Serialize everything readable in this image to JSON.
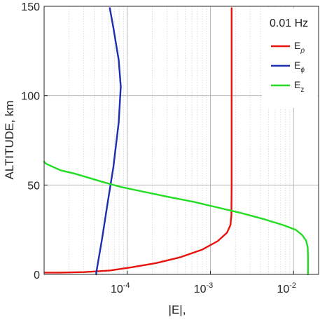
{
  "chart_data": {
    "type": "line",
    "annotation": "0.01 Hz",
    "xlabel": "|E|,",
    "ylabel": "ALTITUDE,  km",
    "x_scale": "log",
    "xlim": [
      1e-05,
      0.02
    ],
    "ylim": [
      0,
      150
    ],
    "x_ticks": [
      {
        "value": 0.0001,
        "base": "10",
        "exp": "-4"
      },
      {
        "value": 0.001,
        "base": "10",
        "exp": "-3"
      },
      {
        "value": 0.01,
        "base": "10",
        "exp": "-2"
      }
    ],
    "y_ticks": [
      0,
      50,
      100,
      150
    ],
    "grid": true,
    "legend_position": "top-right",
    "series": [
      {
        "name": "E",
        "sub": "ρ",
        "color": "#e8120c",
        "points": [
          [
            1.02e-05,
            1
          ],
          [
            1.53e-05,
            1
          ],
          [
            3.05e-05,
            1.3
          ],
          [
            6.17e-05,
            2.2
          ],
          [
            0.000113,
            4
          ],
          [
            0.000221,
            6.3
          ],
          [
            0.000428,
            9.5
          ],
          [
            0.000791,
            13.8
          ],
          [
            0.00122,
            18.6
          ],
          [
            0.00158,
            23.3
          ],
          [
            0.00174,
            27.6
          ],
          [
            0.00179,
            33.2
          ],
          [
            0.0018,
            50
          ],
          [
            0.0018,
            100
          ],
          [
            0.0018,
            149
          ]
        ]
      },
      {
        "name": "E",
        "sub": "ϕ",
        "color": "#1c2db0",
        "points": [
          [
            4.24e-05,
            0
          ],
          [
            4.24e-05,
            1
          ],
          [
            4.98e-05,
            20
          ],
          [
            5.81e-05,
            40
          ],
          [
            6.81e-05,
            60
          ],
          [
            7.89e-05,
            85
          ],
          [
            8.36e-05,
            105
          ],
          [
            7.89e-05,
            120
          ],
          [
            6.81e-05,
            138
          ],
          [
            6.17e-05,
            149
          ]
        ]
      },
      {
        "name": "E",
        "sub": "z",
        "color": "#22dd22",
        "points": [
          [
            1e-05,
            63
          ],
          [
            1.05e-05,
            62
          ],
          [
            1.3e-05,
            60
          ],
          [
            1.59e-05,
            58.2
          ],
          [
            2.28e-05,
            56.5
          ],
          [
            3.19e-05,
            54.5
          ],
          [
            4.98e-05,
            51.8
          ],
          [
            8.25e-05,
            49
          ],
          [
            0.000151,
            46.4
          ],
          [
            0.000316,
            43.3
          ],
          [
            0.000641,
            40.5
          ],
          [
            0.00118,
            37.6
          ],
          [
            0.00227,
            34.5
          ],
          [
            0.00432,
            31
          ],
          [
            0.00749,
            27.6
          ],
          [
            0.0106,
            25
          ],
          [
            0.0127,
            22
          ],
          [
            0.0142,
            18.8
          ],
          [
            0.0148,
            15
          ],
          [
            0.0149,
            10
          ],
          [
            0.0149,
            0
          ]
        ]
      }
    ]
  }
}
